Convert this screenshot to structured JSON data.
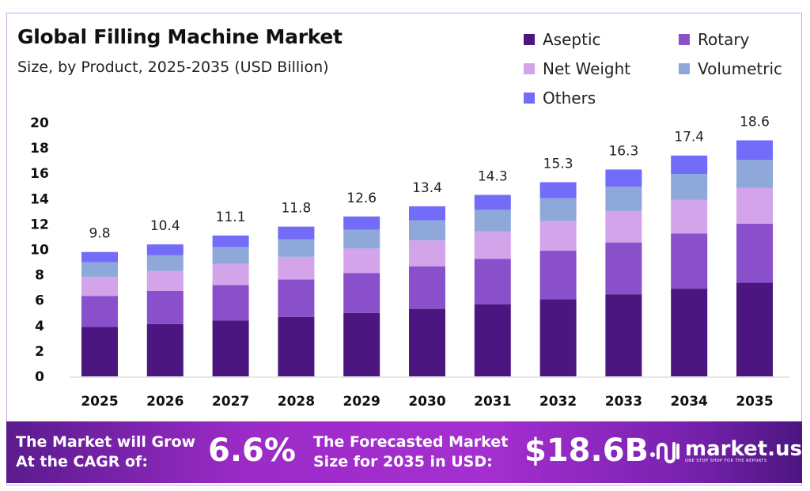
{
  "chart_data": {
    "type": "bar",
    "stacked": true,
    "title": "Global Filling Machine Market",
    "subtitle": "Size, by Product, 2025-2035 (USD Billion)",
    "categories": [
      "2025",
      "2026",
      "2027",
      "2028",
      "2029",
      "2030",
      "2031",
      "2032",
      "2033",
      "2034",
      "2035"
    ],
    "totals": [
      "9.8",
      "10.4",
      "11.1",
      "11.8",
      "12.6",
      "13.4",
      "14.3",
      "15.3",
      "16.3",
      "17.4",
      "18.6"
    ],
    "series": [
      {
        "name": "Aseptic",
        "color": "#4b1680",
        "values": [
          3.89,
          4.13,
          4.41,
          4.68,
          5.0,
          5.32,
          5.68,
          6.07,
          6.47,
          6.91,
          7.38
        ]
      },
      {
        "name": "Rotary",
        "color": "#8a4fcb",
        "values": [
          2.45,
          2.6,
          2.78,
          2.95,
          3.15,
          3.35,
          3.58,
          3.83,
          4.08,
          4.35,
          4.65
        ]
      },
      {
        "name": "Net Weight",
        "color": "#d3a4ea",
        "values": [
          1.49,
          1.58,
          1.69,
          1.79,
          1.92,
          2.04,
          2.17,
          2.33,
          2.48,
          2.64,
          2.83
        ]
      },
      {
        "name": "Volumetric",
        "color": "#8fa8da",
        "values": [
          1.16,
          1.23,
          1.31,
          1.39,
          1.49,
          1.58,
          1.69,
          1.81,
          1.92,
          2.05,
          2.19
        ]
      },
      {
        "name": "Others",
        "color": "#726cf8",
        "values": [
          0.81,
          0.86,
          0.91,
          0.99,
          1.04,
          1.11,
          1.18,
          1.26,
          1.35,
          1.45,
          1.55
        ]
      }
    ],
    "ylim": [
      0,
      20
    ],
    "yticks": [
      "0",
      "2",
      "4",
      "6",
      "8",
      "10",
      "12",
      "14",
      "16",
      "18",
      "20"
    ],
    "grid": false,
    "legend_position": "top-right",
    "xlabel": "",
    "ylabel": ""
  },
  "banner": {
    "cagr_label_line1": "The Market will Grow",
    "cagr_label_line2": "At the CAGR of:",
    "cagr_value": "6.6%",
    "forecast_label_line1": "The Forecasted Market",
    "forecast_label_line2": "Size for 2035 in USD:",
    "forecast_value": "$18.6B",
    "logo_text": "market.us",
    "logo_tagline": "ONE STOP SHOP FOR THE REPORTS"
  }
}
